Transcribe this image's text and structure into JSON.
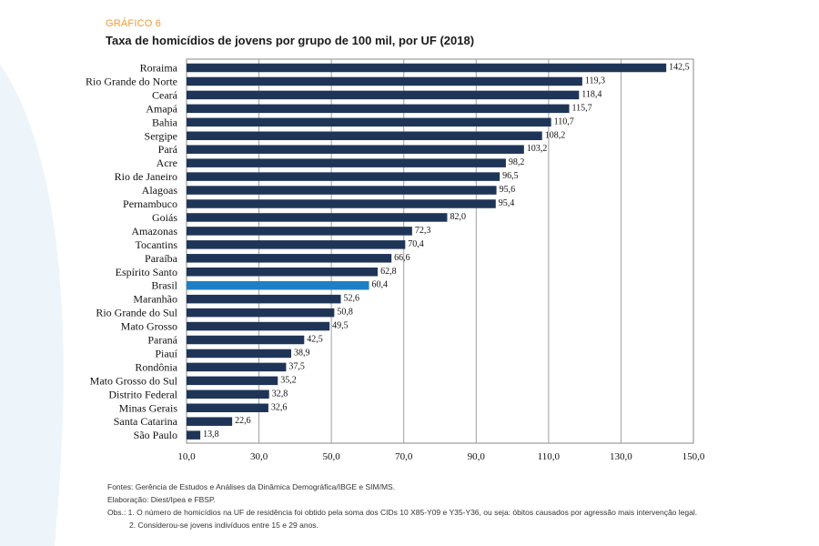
{
  "header": {
    "kicker": "GRÁFICO 6",
    "title": "Taxa de homicídios de jovens por grupo de 100 mil, por UF (2018)"
  },
  "colors": {
    "bar": "#1f3558",
    "highlight": "#1f7fc4",
    "kicker": "#f29a33",
    "swoosh": "#eef5fa"
  },
  "chart_data": {
    "type": "bar",
    "orientation": "horizontal",
    "categories": [
      "Roraima",
      "Rio Grande do Norte",
      "Ceará",
      "Amapá",
      "Bahia",
      "Sergipe",
      "Pará",
      "Acre",
      "Rio de Janeiro",
      "Alagoas",
      "Pernambuco",
      "Goiás",
      "Amazonas",
      "Tocantins",
      "Paraíba",
      "Espírito Santo",
      "Brasil",
      "Maranhão",
      "Rio Grande do Sul",
      "Mato Grosso",
      "Paraná",
      "Piauí",
      "Rondônia",
      "Mato Grosso do Sul",
      "Distrito Federal",
      "Minas Gerais",
      "Santa Catarina",
      "São Paulo"
    ],
    "values": [
      142.5,
      119.3,
      118.4,
      115.7,
      110.7,
      108.2,
      103.2,
      98.2,
      96.5,
      95.6,
      95.4,
      82.0,
      72.3,
      70.4,
      66.6,
      62.8,
      60.4,
      52.6,
      50.8,
      49.5,
      42.5,
      38.9,
      37.5,
      35.2,
      32.8,
      32.6,
      22.6,
      13.8
    ],
    "value_labels": [
      "142,5",
      "119,3",
      "118,4",
      "115,7",
      "110,7",
      "108,2",
      "103,2",
      "98,2",
      "96,5",
      "95,6",
      "95,4",
      "82,0",
      "72,3",
      "70,4",
      "66,6",
      "62,8",
      "60,4",
      "52,6",
      "50,8",
      "49,5",
      "42,5",
      "38,9",
      "37,5",
      "35,2",
      "32,8",
      "32,6",
      "22,6",
      "13,8"
    ],
    "highlight_category": "Brasil",
    "xlim": [
      10,
      150
    ],
    "xticks": [
      10,
      30,
      50,
      70,
      90,
      110,
      130,
      150
    ],
    "xtick_labels": [
      "10,0",
      "30,0",
      "50,0",
      "70,0",
      "90,0",
      "110,0",
      "130,0",
      "150,0"
    ],
    "grid": true,
    "xlabel": "",
    "ylabel": ""
  },
  "notes": {
    "sources": "Fontes: Gerência de Estudos e Análises da Dinâmica Demográfica/IBGE e SIM/MS.",
    "elaboration": "Elaboração: Diest/Ipea e FBSP.",
    "obs1": "Obs.: 1. O número de homicídios na UF de residência foi obtido pela soma dos CIDs 10  X85-Y09 e Y35-Y36, ou seja: óbitos causados por agressão mais intervenção legal.",
    "obs2": "2. Considerou-se jovens indivíduos entre 15 e 29 anos."
  }
}
